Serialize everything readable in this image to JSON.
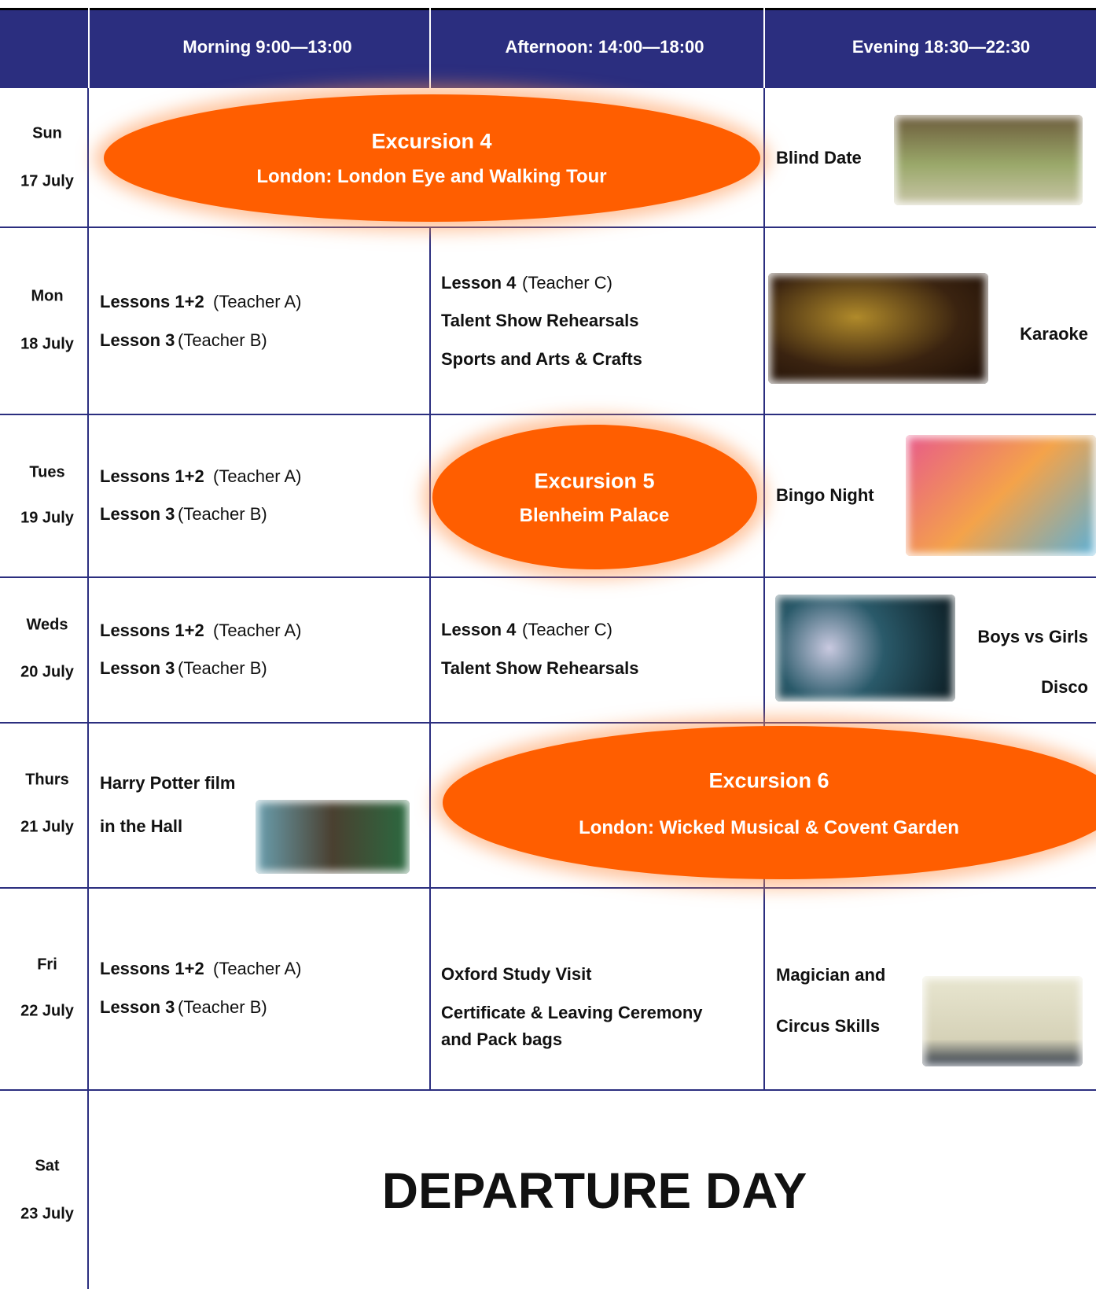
{
  "header": {
    "columns": [
      "Morning 9:00—13:00",
      "Afternoon: 14:00—18:00",
      "Evening 18:30—22:30"
    ]
  },
  "days": [
    {
      "day": "Sun",
      "date": "17 July"
    },
    {
      "day": "Mon",
      "date": "18 July"
    },
    {
      "day": "Tues",
      "date": "19 July"
    },
    {
      "day": "Weds",
      "date": "20 July"
    },
    {
      "day": "Thurs",
      "date": "21 July"
    },
    {
      "day": "Fri",
      "date": "22 July"
    },
    {
      "day": "Sat",
      "date": "23 July"
    }
  ],
  "lessons": {
    "lessons_1_2": "Lessons 1+2",
    "teacher_a": "(Teacher A)",
    "lesson_3": "Lesson 3",
    "teacher_b": "(Teacher B)",
    "lesson_4": "Lesson 4",
    "teacher_c": "(Teacher C)"
  },
  "excursions": [
    {
      "title": "Excursion 4",
      "place": "London: London Eye and Walking Tour"
    },
    {
      "title": "Excursion 5",
      "place": "Blenheim Palace"
    },
    {
      "title": "Excursion 6",
      "place": "London: Wicked Musical & Covent Garden"
    }
  ],
  "afternoon": {
    "talent_show": "Talent Show Rehearsals",
    "sports": "Sports and Arts & Crafts",
    "oxford": "Oxford Study Visit",
    "certificate": "Certificate & Leaving Ceremony",
    "pack": "and Pack bags"
  },
  "thursday_morning": [
    "Harry Potter film",
    "in the Hall"
  ],
  "evening": {
    "blind_date": "Blind Date",
    "karaoke": "Karaoke",
    "bingo": "Bingo Night",
    "boys_girls": "Boys vs Girls",
    "disco": "Disco",
    "magician": "Magician and",
    "circus": "Circus Skills"
  },
  "departure": "DEPARTURE DAY"
}
